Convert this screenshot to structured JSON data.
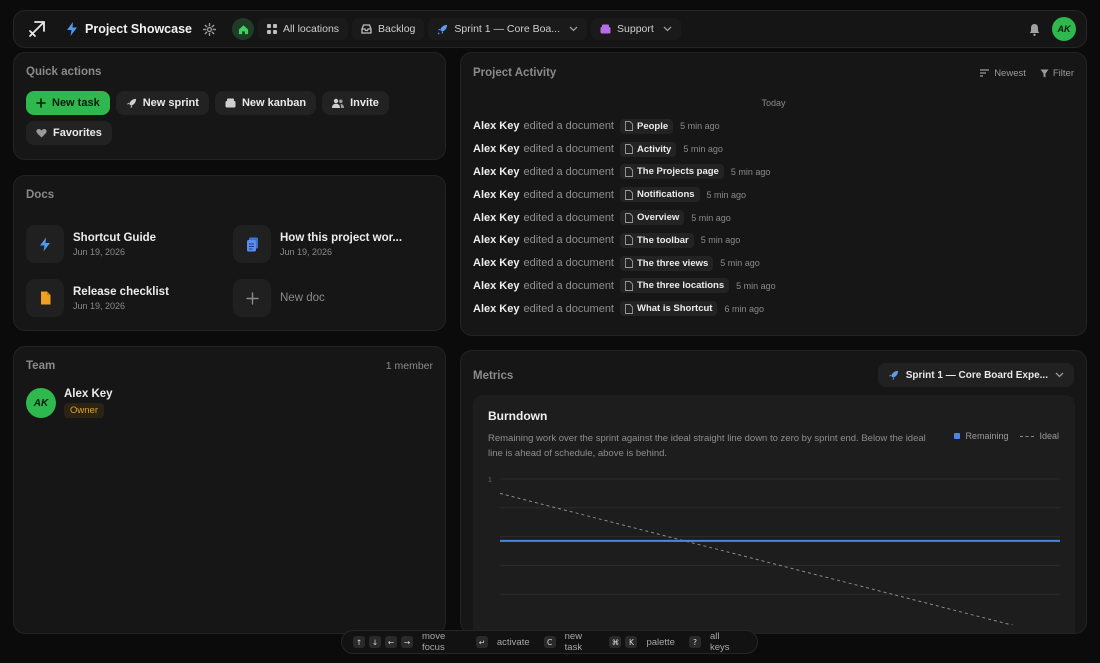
{
  "topbar": {
    "project_title": "Project Showcase",
    "nav": [
      {
        "label": "All locations",
        "icon": "grid-icon"
      },
      {
        "label": "Backlog",
        "icon": "inbox-icon"
      },
      {
        "label": "Sprint 1 — Core Boa...",
        "icon": "rocket-icon"
      },
      {
        "label": "Support",
        "icon": "box-icon"
      }
    ],
    "avatar": "AK"
  },
  "quick_actions": {
    "title": "Quick actions",
    "buttons": [
      "New task",
      "New sprint",
      "New kanban",
      "Invite",
      "Favorites"
    ]
  },
  "docs": {
    "title": "Docs",
    "items": [
      {
        "name": "Shortcut Guide",
        "date": "Jun 19, 2026",
        "icon": "bolt-icon"
      },
      {
        "name": "How this project wor...",
        "date": "Jun 19, 2026",
        "icon": "document-stack-icon"
      },
      {
        "name": "Release checklist",
        "date": "Jun 19, 2026",
        "icon": "file-icon"
      }
    ],
    "new_doc": "New doc"
  },
  "team": {
    "title": "Team",
    "count": "1 member",
    "members": [
      {
        "initials": "AK",
        "name": "Alex Key",
        "role": "Owner"
      }
    ]
  },
  "activity": {
    "title": "Project Activity",
    "sort_label": "Newest",
    "filter_label": "Filter",
    "day": "Today",
    "verb": "edited a document",
    "entries": [
      {
        "user": "Alex Key",
        "doc": "People",
        "time": "5 min ago"
      },
      {
        "user": "Alex Key",
        "doc": "Activity",
        "time": "5 min ago"
      },
      {
        "user": "Alex Key",
        "doc": "The Projects page",
        "time": "5 min ago"
      },
      {
        "user": "Alex Key",
        "doc": "Notifications",
        "time": "5 min ago"
      },
      {
        "user": "Alex Key",
        "doc": "Overview",
        "time": "5 min ago"
      },
      {
        "user": "Alex Key",
        "doc": "The toolbar",
        "time": "5 min ago"
      },
      {
        "user": "Alex Key",
        "doc": "The three views",
        "time": "5 min ago"
      },
      {
        "user": "Alex Key",
        "doc": "The three locations",
        "time": "5 min ago"
      },
      {
        "user": "Alex Key",
        "doc": "What is Shortcut",
        "time": "6 min ago"
      }
    ]
  },
  "metrics": {
    "title": "Metrics",
    "sprint_select": "Sprint 1 — Core Board Expe...",
    "colors": {
      "remaining": "#4a86e8",
      "ideal": "#8a8a8a"
    }
  },
  "chart_data": {
    "type": "line",
    "title": "Burndown",
    "subtitle": "Remaining work over the sprint against the ideal straight line down to zero by sprint end. Below the ideal line is ahead of schedule, above is behind.",
    "xlabel": "",
    "ylabel": "",
    "ylim": [
      0,
      1
    ],
    "y_ticks": [
      "1",
      "",
      "",
      "",
      ""
    ],
    "grid": true,
    "legend_position": "top-right",
    "series": [
      {
        "name": "Remaining",
        "style": "solid",
        "x": [
          0,
          1
        ],
        "y": [
          0.57,
          0.57
        ]
      },
      {
        "name": "Ideal",
        "style": "dashed",
        "x": [
          0,
          1
        ],
        "y": [
          0.9,
          -0.1
        ]
      }
    ]
  },
  "hints": [
    {
      "keys": [
        "↑",
        "↓",
        "←",
        "→"
      ],
      "label": "move focus"
    },
    {
      "keys": [
        "↵"
      ],
      "label": "activate"
    },
    {
      "keys": [
        "C"
      ],
      "label": "new task"
    },
    {
      "keys": [
        "⌘",
        "K"
      ],
      "label": "palette"
    },
    {
      "keys": [
        "?"
      ],
      "label": "all keys"
    }
  ]
}
